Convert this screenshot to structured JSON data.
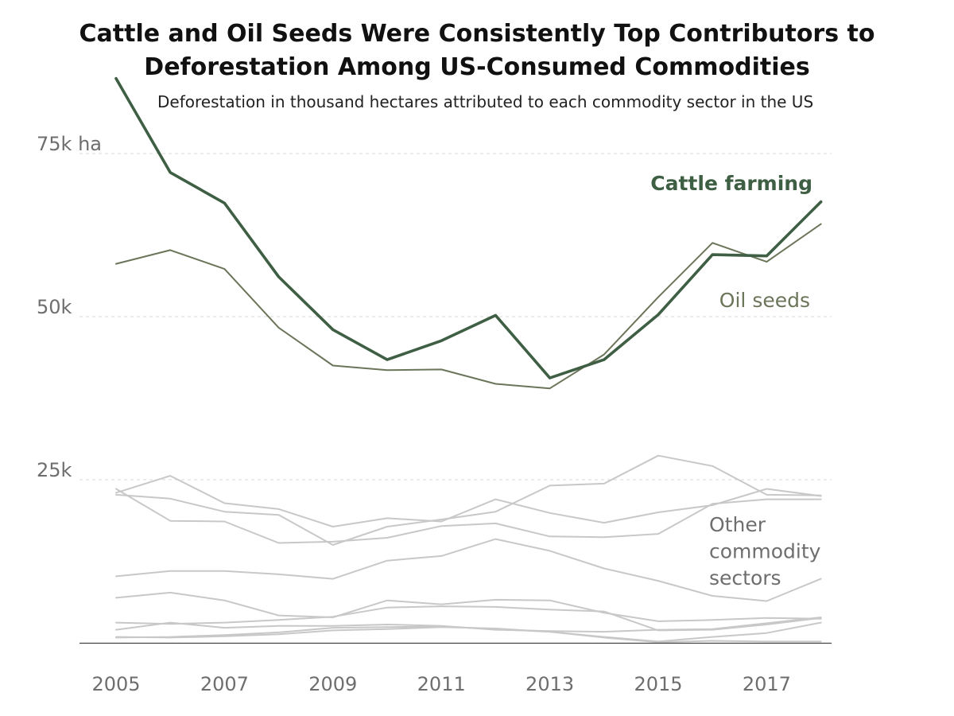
{
  "chart_data": {
    "type": "line",
    "title_lines": [
      "Cattle and Oil Seeds Were Consistently Top Contributors to",
      "Deforestation Among US-Consumed Commodities"
    ],
    "subtitle": "Deforestation in thousand hectares attributed to each commodity sector in the US",
    "x": [
      2005,
      2006,
      2007,
      2008,
      2009,
      2010,
      2011,
      2012,
      2013,
      2014,
      2015,
      2016,
      2017,
      2018
    ],
    "x_tick_labels": [
      "2005",
      "2007",
      "2009",
      "2011",
      "2013",
      "2015",
      "2017"
    ],
    "x_tick_values": [
      2005,
      2007,
      2009,
      2011,
      2013,
      2015,
      2017
    ],
    "y_ticks": [
      {
        "value": 75,
        "label": "75k ha"
      },
      {
        "value": 50,
        "label": "50k"
      },
      {
        "value": 25,
        "label": "25k"
      }
    ],
    "ylim": [
      0,
      75
    ],
    "grid": "horizontal dashed",
    "unit": "thousand hectares",
    "colors": {
      "cattle": "#3f5f44",
      "oil_seeds": "#6b7559",
      "other": "#c8c8c8",
      "other_label": "#6e6e6e",
      "axis": "#444444"
    },
    "series": [
      {
        "name": "Cattle farming",
        "key": "cattle",
        "emphasis": true,
        "values": [
          86.5,
          72.1,
          67.4,
          56.1,
          48.0,
          43.4,
          46.3,
          50.2,
          40.6,
          43.4,
          50.3,
          59.5,
          59.3,
          67.6
        ]
      },
      {
        "name": "Oil seeds",
        "key": "oil_seeds",
        "values": [
          58.1,
          60.2,
          57.3,
          48.3,
          42.5,
          41.8,
          41.9,
          39.7,
          39.0,
          44.2,
          53.0,
          61.3,
          58.4,
          64.2
        ]
      },
      {
        "group": "Other commodity sectors",
        "key": "other",
        "values": [
          23.0,
          25.6,
          21.4,
          20.5,
          17.8,
          19.1,
          18.6,
          22.0,
          19.9,
          18.4,
          20.0,
          21.1,
          23.6,
          22.5
        ]
      },
      {
        "group": "Other commodity sectors",
        "key": "other",
        "values": [
          22.7,
          22.1,
          20.1,
          19.6,
          15.0,
          17.8,
          18.9,
          20.1,
          24.1,
          24.4,
          28.7,
          27.1,
          22.7,
          22.6
        ]
      },
      {
        "group": "Other commodity sectors",
        "key": "other",
        "values": [
          23.6,
          18.7,
          18.6,
          15.3,
          15.5,
          16.1,
          17.9,
          18.3,
          16.3,
          16.2,
          16.7,
          21.3,
          22.0,
          22.0
        ]
      },
      {
        "group": "Other commodity sectors",
        "key": "other",
        "values": [
          10.2,
          11.0,
          11.0,
          10.5,
          9.8,
          12.6,
          13.3,
          15.9,
          14.1,
          11.4,
          9.5,
          7.2,
          6.4,
          9.8
        ]
      },
      {
        "group": "Other commodity sectors",
        "key": "other",
        "values": [
          6.9,
          7.7,
          6.5,
          4.2,
          3.9,
          6.5,
          5.9,
          6.6,
          6.5,
          4.6,
          3.3,
          3.5,
          3.8,
          3.7
        ]
      },
      {
        "group": "Other commodity sectors",
        "key": "other",
        "values": [
          3.1,
          2.9,
          3.1,
          3.5,
          4.0,
          5.4,
          5.6,
          5.5,
          5.1,
          4.8,
          1.9,
          2.0,
          2.8,
          3.8
        ]
      },
      {
        "group": "Other commodity sectors",
        "key": "other",
        "values": [
          2.0,
          3.1,
          2.3,
          2.6,
          2.6,
          2.8,
          2.6,
          2.0,
          1.8,
          1.7,
          2.0,
          2.1,
          3.0,
          3.9
        ]
      },
      {
        "group": "Other commodity sectors",
        "key": "other",
        "values": [
          0.8,
          0.9,
          1.2,
          1.6,
          2.3,
          2.4,
          2.5,
          2.1,
          1.7,
          0.8,
          0.1,
          0.3,
          0.2,
          0.2
        ]
      },
      {
        "group": "Other commodity sectors",
        "key": "other",
        "values": [
          0.9,
          0.8,
          1.0,
          1.3,
          1.9,
          2.1,
          2.4,
          2.2,
          1.7,
          0.9,
          0.2,
          0.9,
          1.5,
          3.1
        ]
      }
    ],
    "annotations": [
      {
        "text": "Cattle farming",
        "series": "cattle"
      },
      {
        "text": "Oil seeds",
        "series": "oil_seeds"
      },
      {
        "text_lines": [
          "Other",
          "commodity",
          "sectors"
        ],
        "series": "other"
      }
    ]
  }
}
